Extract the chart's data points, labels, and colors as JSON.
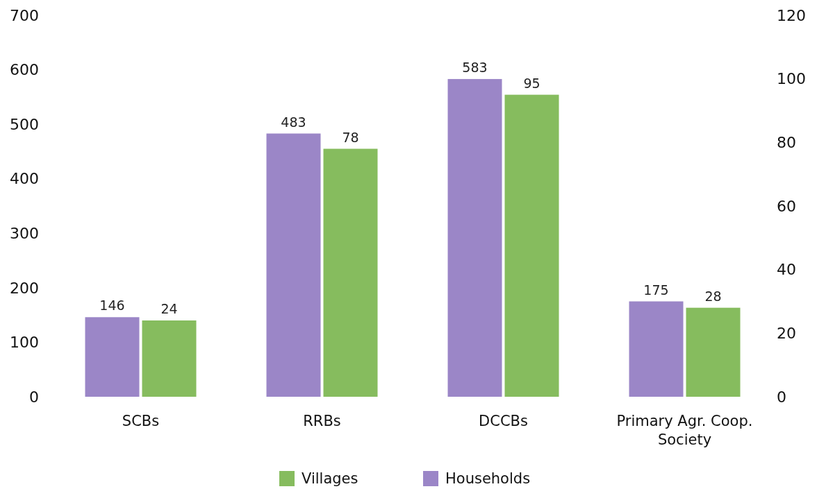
{
  "chart_data": {
    "type": "bar",
    "categories": [
      "SCBs",
      "RRBs",
      "DCCBs",
      "Primary Agr. Coop. Society"
    ],
    "series": [
      {
        "name": "Households",
        "color": "#9b86c7",
        "values": [
          146,
          483,
          583,
          175
        ]
      },
      {
        "name": "Villages",
        "color": "#86bc5e",
        "values": [
          24,
          78,
          95,
          28
        ],
        "axis": "y2"
      }
    ],
    "ylim": [
      0,
      700
    ],
    "yticks": [
      0,
      100,
      200,
      300,
      400,
      500,
      600,
      700
    ],
    "y2lim": [
      0,
      120
    ],
    "y2ticks": [
      0,
      20,
      40,
      60,
      80,
      100,
      120
    ],
    "data_labels": true,
    "grid": false,
    "legend": "bottom"
  }
}
